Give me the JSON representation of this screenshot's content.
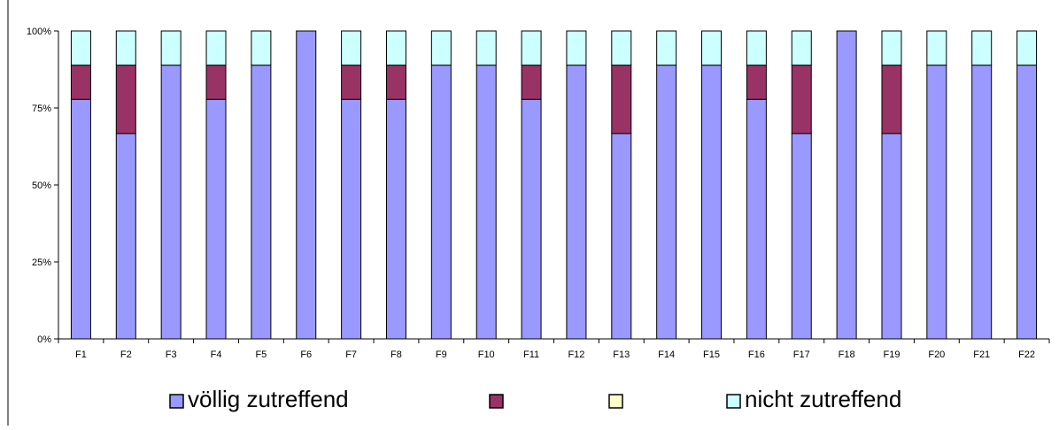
{
  "chart_data": {
    "type": "bar",
    "stacked": true,
    "percent": true,
    "title": "",
    "xlabel": "",
    "ylabel": "",
    "ylim": [
      0,
      100
    ],
    "yticks": [
      "0%",
      "25%",
      "50%",
      "75%",
      "100%"
    ],
    "grid": false,
    "legend_position": "bottom",
    "categories": [
      "F1",
      "F2",
      "F3",
      "F4",
      "F5",
      "F6",
      "F7",
      "F8",
      "F9",
      "F10",
      "F11",
      "F12",
      "F13",
      "F14",
      "F15",
      "F16",
      "F17",
      "F18",
      "F19",
      "F20",
      "F21",
      "F22"
    ],
    "series": [
      {
        "name": "völlig zutreffend",
        "color": "#9999ff",
        "values": [
          77.8,
          66.7,
          88.9,
          77.8,
          88.9,
          100,
          77.8,
          77.8,
          88.9,
          88.9,
          77.8,
          88.9,
          66.7,
          88.9,
          88.9,
          77.8,
          66.7,
          100,
          66.7,
          88.9,
          88.9,
          88.9
        ]
      },
      {
        "name": "",
        "color": "#993366",
        "values": [
          11.1,
          22.2,
          0,
          11.1,
          0,
          0,
          11.1,
          11.1,
          0,
          0,
          11.1,
          0,
          22.2,
          0,
          0,
          11.1,
          22.2,
          0,
          22.2,
          0,
          0,
          0
        ]
      },
      {
        "name": "",
        "color": "#ffffcc",
        "values": [
          0,
          0,
          0,
          0,
          0,
          0,
          0,
          0,
          0,
          0,
          0,
          0,
          0,
          0,
          0,
          0,
          0,
          0,
          0,
          0,
          0,
          0
        ]
      },
      {
        "name": "nicht zutreffend",
        "color": "#ccffff",
        "values": [
          11.1,
          11.1,
          11.1,
          11.1,
          11.1,
          0,
          11.1,
          11.1,
          11.1,
          11.1,
          11.1,
          11.1,
          11.1,
          11.1,
          11.1,
          11.1,
          11.1,
          0,
          11.1,
          11.1,
          11.1,
          11.1
        ]
      }
    ]
  }
}
